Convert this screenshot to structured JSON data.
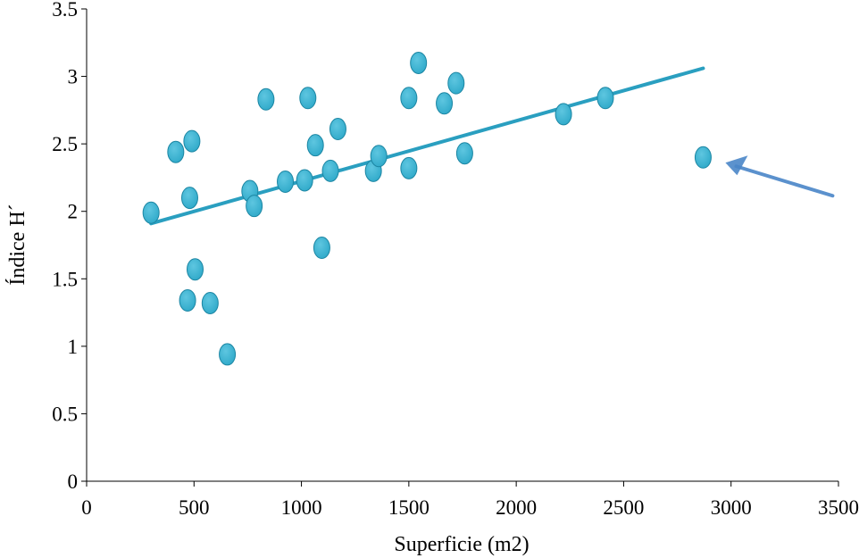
{
  "chart_data": {
    "type": "scatter",
    "title": "",
    "xlabel": "Superficie (m2)",
    "ylabel": "Índice H´",
    "xlim": [
      0,
      3500
    ],
    "ylim": [
      0,
      3.5
    ],
    "xticks": [
      0,
      500,
      1000,
      1500,
      2000,
      2500,
      3000,
      3500
    ],
    "yticks": [
      0,
      0.5,
      1,
      1.5,
      2,
      2.5,
      3,
      3.5
    ],
    "xtick_labels": [
      "0",
      "500",
      "1000",
      "1500",
      "2000",
      "2500",
      "3000",
      "3500"
    ],
    "ytick_labels": [
      "0",
      "0.5",
      "1",
      "1.5",
      "2",
      "2.5",
      "3",
      "3.5"
    ],
    "grid": false,
    "marker_color": "#2fa9c9",
    "marker_edge_color": "#1c86a3",
    "trend_color": "#2a9fc0",
    "arrow_color": "#4a86c8",
    "series": [
      {
        "name": "Índice H´",
        "points": [
          {
            "x": 300,
            "y": 1.99
          },
          {
            "x": 415,
            "y": 2.44
          },
          {
            "x": 470,
            "y": 1.34
          },
          {
            "x": 480,
            "y": 2.1
          },
          {
            "x": 490,
            "y": 2.52
          },
          {
            "x": 505,
            "y": 1.57
          },
          {
            "x": 575,
            "y": 1.32
          },
          {
            "x": 655,
            "y": 0.94
          },
          {
            "x": 760,
            "y": 2.15
          },
          {
            "x": 780,
            "y": 2.04
          },
          {
            "x": 835,
            "y": 2.83
          },
          {
            "x": 925,
            "y": 2.22
          },
          {
            "x": 1015,
            "y": 2.23
          },
          {
            "x": 1030,
            "y": 2.84
          },
          {
            "x": 1065,
            "y": 2.49
          },
          {
            "x": 1095,
            "y": 1.73
          },
          {
            "x": 1135,
            "y": 2.3
          },
          {
            "x": 1170,
            "y": 2.61
          },
          {
            "x": 1335,
            "y": 2.3
          },
          {
            "x": 1360,
            "y": 2.41
          },
          {
            "x": 1500,
            "y": 2.84
          },
          {
            "x": 1500,
            "y": 2.32
          },
          {
            "x": 1545,
            "y": 3.1
          },
          {
            "x": 1665,
            "y": 2.8
          },
          {
            "x": 1720,
            "y": 2.95
          },
          {
            "x": 1760,
            "y": 2.43
          },
          {
            "x": 2220,
            "y": 2.72
          },
          {
            "x": 2415,
            "y": 2.84
          },
          {
            "x": 2870,
            "y": 2.4
          }
        ]
      }
    ],
    "trendline": {
      "x": [
        300,
        2870
      ],
      "y": [
        1.91,
        3.06
      ]
    },
    "annotations": [
      {
        "type": "arrow",
        "points_to": {
          "x": 2870,
          "y": 2.4
        }
      }
    ]
  }
}
